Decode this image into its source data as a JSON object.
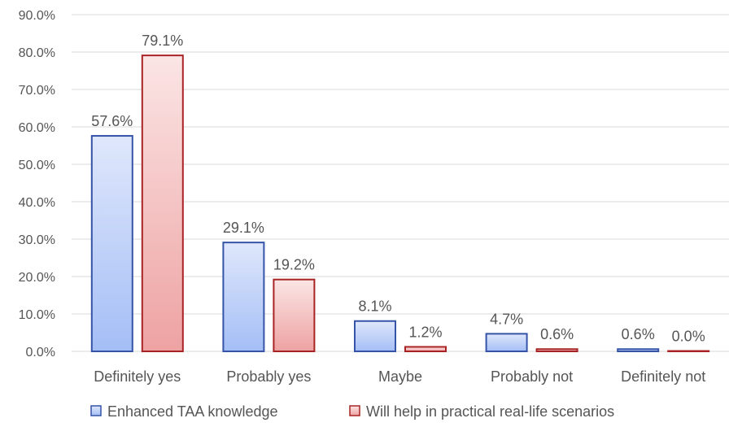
{
  "chart_data": {
    "type": "bar",
    "title": "",
    "xlabel": "",
    "ylabel": "",
    "ylim": [
      0,
      90
    ],
    "y_ticks": [
      "0.0%",
      "10.0%",
      "20.0%",
      "30.0%",
      "40.0%",
      "50.0%",
      "60.0%",
      "70.0%",
      "80.0%",
      "90.0%"
    ],
    "categories": [
      "Definitely yes",
      "Probably yes",
      "Maybe",
      "Probably not",
      "Definitely not"
    ],
    "series": [
      {
        "name": "Enhanced TAA knowledge",
        "values": [
          57.6,
          29.1,
          8.1,
          4.7,
          0.6
        ],
        "labels": [
          "57.6%",
          "29.1%",
          "8.1%",
          "4.7%",
          "0.6%"
        ],
        "color_top": "#dfe7fb",
        "color_bottom": "#a4bef6",
        "stroke": "#3554a8"
      },
      {
        "name": "Will help in practical real-life scenarios",
        "values": [
          79.1,
          19.2,
          1.2,
          0.6,
          0.0
        ],
        "labels": [
          "79.1%",
          "19.2%",
          "1.2%",
          "0.6%",
          "0.0%"
        ],
        "color_top": "#fbe5e5",
        "color_bottom": "#eea2a2",
        "stroke": "#a82424"
      }
    ],
    "grid": true,
    "legend_position": "bottom"
  }
}
